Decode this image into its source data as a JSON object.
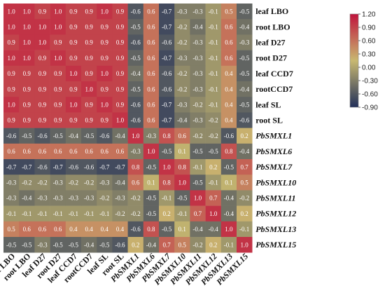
{
  "chart_data": {
    "type": "heatmap",
    "rows": [
      "leaf LBO",
      "root LBO",
      "leaf D27",
      "root D27",
      "leaf CCD7",
      "rootCCD7",
      "leaf SL",
      "root SL",
      "PbSMXL1",
      "PbSMXL6",
      "PbSMXL7",
      "PbSMXL10",
      "PbSMXL11",
      "PbSMXL12",
      "PbSMXL13",
      "PbSMXL15"
    ],
    "columns": [
      "leaf LBO",
      "root LBO",
      "leaf D27",
      "root D27",
      "leaf CCD7",
      "rootCCD7",
      "leaf SL",
      "root SL",
      "PbSMXL1",
      "PbSMXL6",
      "PbSMXL7",
      "PbSMXL10",
      "PbSMXL11",
      "PbSMXL12",
      "PbSMXL13",
      "PbSMXL15"
    ],
    "italic_labels": [
      "PbSMXL1",
      "PbSMXL6",
      "PbSMXL7",
      "PbSMXL10",
      "PbSMXL11",
      "PbSMXL12",
      "PbSMXL13",
      "PbSMXL15"
    ],
    "values": [
      [
        "1.0",
        "1.0",
        "0.9",
        "1.0",
        "0.9",
        "0.9",
        "1.0",
        "0.9",
        "-0.6",
        "0.6",
        "-0.7",
        "-0.3",
        "-0.3",
        "-0.1",
        "0.5",
        "-0.5"
      ],
      [
        "1.0",
        "1.0",
        "1.0",
        "1.0",
        "0.9",
        "0.9",
        "0.9",
        "0.9",
        "-0.5",
        "0.6",
        "-0.7",
        "-0.2",
        "-0.4",
        "-0.1",
        "0.6",
        "-0.4"
      ],
      [
        "0.9",
        "1.0",
        "1.0",
        "0.9",
        "0.9",
        "0.9",
        "0.9",
        "0.9",
        "-0.6",
        "0.6",
        "-0.6",
        "-0.2",
        "-0.3",
        "-0.1",
        "0.6",
        "-0.3"
      ],
      [
        "1.0",
        "1.0",
        "0.9",
        "1.0",
        "0.9",
        "0.9",
        "0.9",
        "0.9",
        "-0.5",
        "0.6",
        "-0.7",
        "-0.3",
        "-0.3",
        "-0.1",
        "0.6",
        "-0.5"
      ],
      [
        "0.9",
        "0.9",
        "0.9",
        "0.9",
        "1.0",
        "0.9",
        "1.0",
        "0.9",
        "-0.4",
        "0.6",
        "-0.6",
        "-0.2",
        "-0.3",
        "-0.1",
        "0.4",
        "-0.5"
      ],
      [
        "0.9",
        "0.9",
        "0.9",
        "0.9",
        "0.9",
        "1.0",
        "0.9",
        "0.9",
        "-0.5",
        "0.6",
        "-0.6",
        "-0.2",
        "-0.3",
        "-0.1",
        "0.4",
        "-0.4"
      ],
      [
        "1.0",
        "0.9",
        "0.9",
        "0.9",
        "1.0",
        "0.9",
        "1.0",
        "0.9",
        "-0.6",
        "0.6",
        "-0.7",
        "-0.3",
        "-0.2",
        "-0.1",
        "0.4",
        "-0.5"
      ],
      [
        "0.9",
        "0.9",
        "0.9",
        "0.9",
        "0.9",
        "0.9",
        "0.9",
        "1.0",
        "-0.6",
        "0.6",
        "-0.7",
        "-0.4",
        "-0.3",
        "-0.2",
        "0.4",
        "-0.6"
      ],
      [
        "-0.6",
        "-0.5",
        "-0.6",
        "-0.5",
        "-0.4",
        "-0.5",
        "-0.6",
        "-0.4",
        "1.0",
        "-0.3",
        "0.8",
        "0.6",
        "-0.2",
        "-0.2",
        "-0.6",
        "0.2"
      ],
      [
        "0.6",
        "0.6",
        "0.6",
        "0.6",
        "0.6",
        "0.6",
        "0.6",
        "0.6",
        "-0.3",
        "1.0",
        "-0.5",
        "0.1",
        "-0.5",
        "-0.5",
        "0.8",
        "-0.4"
      ],
      [
        "-0.7",
        "-0.7",
        "-0.6",
        "-0.7",
        "-0.6",
        "-0.6",
        "-0.7",
        "-0.7",
        "0.8",
        "-0.5",
        "1.0",
        "0.8",
        "-0.1",
        "0.2",
        "-0.5",
        "0.7"
      ],
      [
        "-0.3",
        "-0.2",
        "-0.2",
        "-0.3",
        "-0.2",
        "-0.2",
        "-0.3",
        "-0.4",
        "0.6",
        "0.1",
        "0.8",
        "1.0",
        "-0.5",
        "-0.1",
        "0.1",
        "0.5"
      ],
      [
        "-0.3",
        "-0.4",
        "-0.3",
        "-0.3",
        "-0.3",
        "-0.3",
        "-0.2",
        "-0.3",
        "-0.2",
        "-0.5",
        "-0.1",
        "-0.5",
        "1.0",
        "0.7",
        "-0.4",
        "-0.2"
      ],
      [
        "-0.1",
        "-0.1",
        "-0.1",
        "-0.1",
        "-0.1",
        "-0.1",
        "-0.1",
        "-0.2",
        "-0.2",
        "-0.5",
        "0.2",
        "-0.1",
        "0.7",
        "1.0",
        "-0.4",
        "0.2"
      ],
      [
        "0.5",
        "0.6",
        "0.6",
        "0.6",
        "0.4",
        "0.4",
        "0.4",
        "0.4",
        "-0.6",
        "0.8",
        "-0.5",
        "0.1",
        "-0.4",
        "-0.4",
        "1.0",
        "-0.1"
      ],
      [
        "-0.5",
        "-0.5",
        "-0.3",
        "-0.5",
        "-0.5",
        "-0.4",
        "-0.5",
        "-0.6",
        "0.2",
        "-0.4",
        "0.7",
        "0.5",
        "-0.2",
        "0.2",
        "-0.1",
        "1.0"
      ]
    ],
    "colorbar": {
      "ticks": [
        "1.20",
        "0.90",
        "0.60",
        "0.30",
        "0.00",
        "-0.30",
        "-0.60",
        "-0.90"
      ],
      "range": [
        -0.9,
        1.2
      ],
      "colors": [
        "#22305a",
        "#c8b870",
        "#c0143c"
      ]
    }
  }
}
